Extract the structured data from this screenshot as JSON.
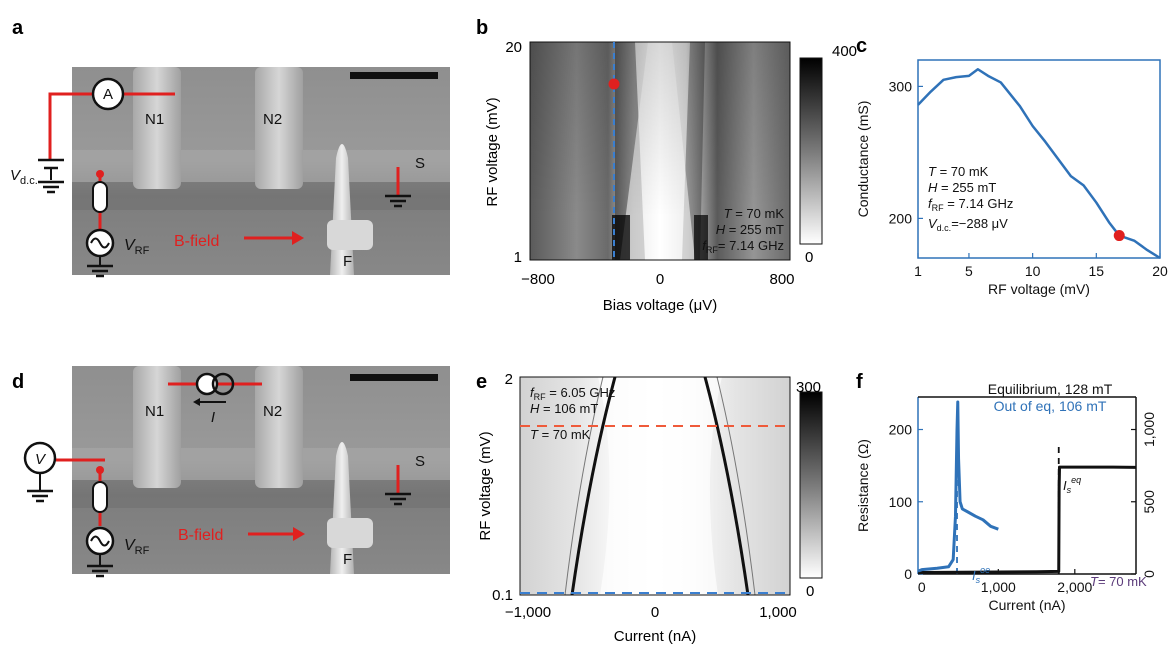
{
  "panels": {
    "a": {
      "letter": "a",
      "labels": {
        "ammeter": "A",
        "n1": "N1",
        "n2": "N2",
        "s": "S",
        "f": "F",
        "vdc_main": "V",
        "vdc_sub": "d.c.",
        "vrf_main": "V",
        "vrf_sub": "RF",
        "bfield": "B-field"
      }
    },
    "b": {
      "letter": "b",
      "xlabel": "Bias voltage (μV)",
      "ylabel": "RF voltage (mV)",
      "xticks": [
        "−800",
        "0",
        "800"
      ],
      "yticks": [
        "20",
        "1"
      ],
      "colorbar": [
        "400",
        "0"
      ],
      "annot": {
        "t_main": "T",
        "t_val": " = 70 mK",
        "h_main": "H",
        "h_val": " = 255 mT",
        "f_main": "f",
        "f_sub": "RF",
        "f_val": "= 7.14 GHz"
      }
    },
    "c": {
      "letter": "c",
      "annot": {
        "t_main": "T",
        "t_val": " = 70 mK",
        "h_main": "H",
        "h_val": " = 255 mT",
        "f_main": "f",
        "f_sub": "RF",
        "f_val": " = 7.14 GHz",
        "v_main": "V",
        "v_sub": "d.c.",
        "v_val": "=−288 μV"
      }
    },
    "d": {
      "letter": "d",
      "labels": {
        "voltmeter": "V",
        "n1": "N1",
        "n2": "N2",
        "s": "S",
        "f": "F",
        "i": "I",
        "vrf_main": "V",
        "vrf_sub": "RF",
        "bfield": "B-field"
      }
    },
    "e": {
      "letter": "e",
      "xlabel": "Current (nA)",
      "ylabel": "RF voltage (mV)",
      "xticks": [
        "−1,000",
        "0",
        "1,000"
      ],
      "yticks": [
        "2",
        "0.1"
      ],
      "colorbar": [
        "300",
        "0"
      ],
      "annot": {
        "f_main": "f",
        "f_sub": "RF",
        "f_val": " = 6.05 GHz",
        "h_main": "H",
        "h_val": " = 106 mT",
        "t_main": "T",
        "t_val": " = 70 mK"
      }
    },
    "f": {
      "letter": "f",
      "annot": {
        "isoe_main": "I",
        "isoe_sub": "s",
        "isoe_sup": "oe",
        "iseq_main": "I",
        "iseq_sub": "s",
        "iseq_sup": "eq",
        "t_main": "T",
        "t_val": "= 70 mK"
      }
    }
  },
  "chart_data": [
    {
      "panel": "c",
      "type": "line",
      "xlabel": "RF voltage (mV)",
      "ylabel": "Conductance (mS)",
      "xlim": [
        1,
        20
      ],
      "ylim": [
        170,
        320
      ],
      "xticks": [
        1,
        5,
        10,
        15,
        20
      ],
      "yticks": [
        200,
        300
      ],
      "series": [
        {
          "color": "#2f72b8",
          "x": [
            1,
            2,
            3,
            4,
            5,
            5.7,
            6.5,
            7.5,
            9,
            10,
            11,
            12,
            13,
            14,
            15,
            16,
            16.8,
            18,
            19,
            20
          ],
          "y": [
            286,
            296,
            305,
            307,
            308,
            313,
            308,
            303,
            285,
            270,
            258,
            245,
            232,
            225,
            212,
            197,
            187,
            183,
            176,
            170
          ]
        }
      ],
      "marker": {
        "x": 16.8,
        "y": 187,
        "color": "#e0201f"
      }
    },
    {
      "panel": "f",
      "type": "line",
      "xlabel": "Current (nA)",
      "ylabel": "Resistance (Ω)",
      "ylabel_right": "",
      "xlim": [
        -50,
        2800
      ],
      "ylim": [
        0,
        245
      ],
      "ylim_right": [
        0,
        1225
      ],
      "xticks": [
        "0",
        "1,000",
        "2,000"
      ],
      "xtick_values": [
        0,
        1000,
        2000
      ],
      "yticks": [
        0,
        100,
        200
      ],
      "yticks_right": [
        "0",
        "500",
        "1,000"
      ],
      "ytick_right_values": [
        0,
        500,
        1000
      ],
      "series": [
        {
          "name": "Equilibrium, 128 mT",
          "color": "#111111",
          "axis": "right",
          "x": [
            -50,
            0,
            500,
            1000,
            1500,
            1790,
            1795,
            1800,
            2000,
            2500,
            2800
          ],
          "y": [
            8,
            10,
            12,
            14,
            16,
            18,
            600,
            740,
            740,
            740,
            738
          ]
        },
        {
          "name": "Out of eq, 106 mT",
          "color": "#2f72b8",
          "axis": "left",
          "x": [
            -50,
            0,
            200,
            350,
            410,
            440,
            460,
            470,
            480,
            500,
            530,
            600,
            700,
            800,
            900,
            1000
          ],
          "y": [
            4,
            6,
            8,
            10,
            20,
            80,
            200,
            238,
            160,
            100,
            90,
            86,
            80,
            75,
            66,
            62
          ]
        }
      ],
      "vlines": [
        {
          "x": 460,
          "color": "#2f72b8"
        },
        {
          "x": 1790,
          "color": "#111111"
        }
      ]
    }
  ],
  "colors": {
    "red": "#e0201f",
    "blue": "#2f72b8",
    "purple": "#5b3b7a",
    "dashed_red": "#ef5a3a",
    "dashed_blue": "#3a7fd0"
  }
}
